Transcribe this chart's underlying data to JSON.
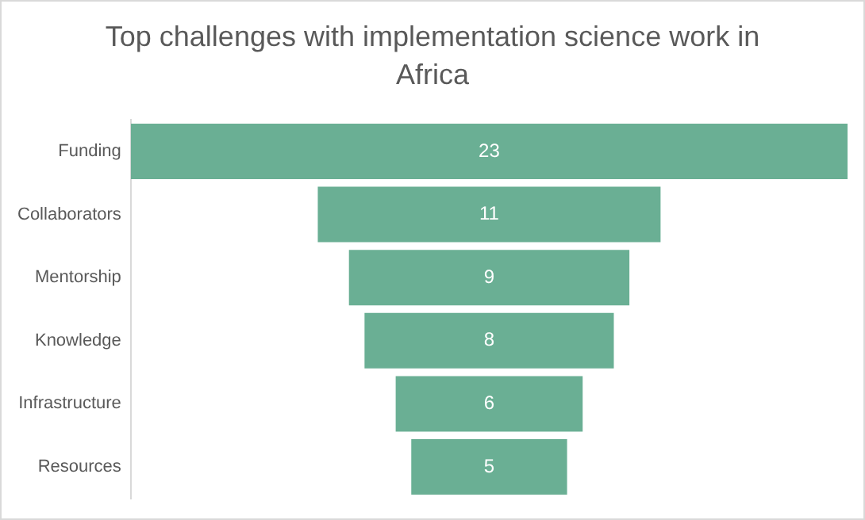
{
  "chart_data": {
    "type": "other",
    "title": "Top challenges with implementation science work in Africa",
    "categories": [
      "Funding",
      "Collaborators",
      "Mentorship",
      "Knowledge",
      "Infrastructure",
      "Resources"
    ],
    "values": [
      23,
      11,
      9,
      8,
      6,
      5
    ],
    "color": "#6aaf94",
    "data_labels": true
  }
}
